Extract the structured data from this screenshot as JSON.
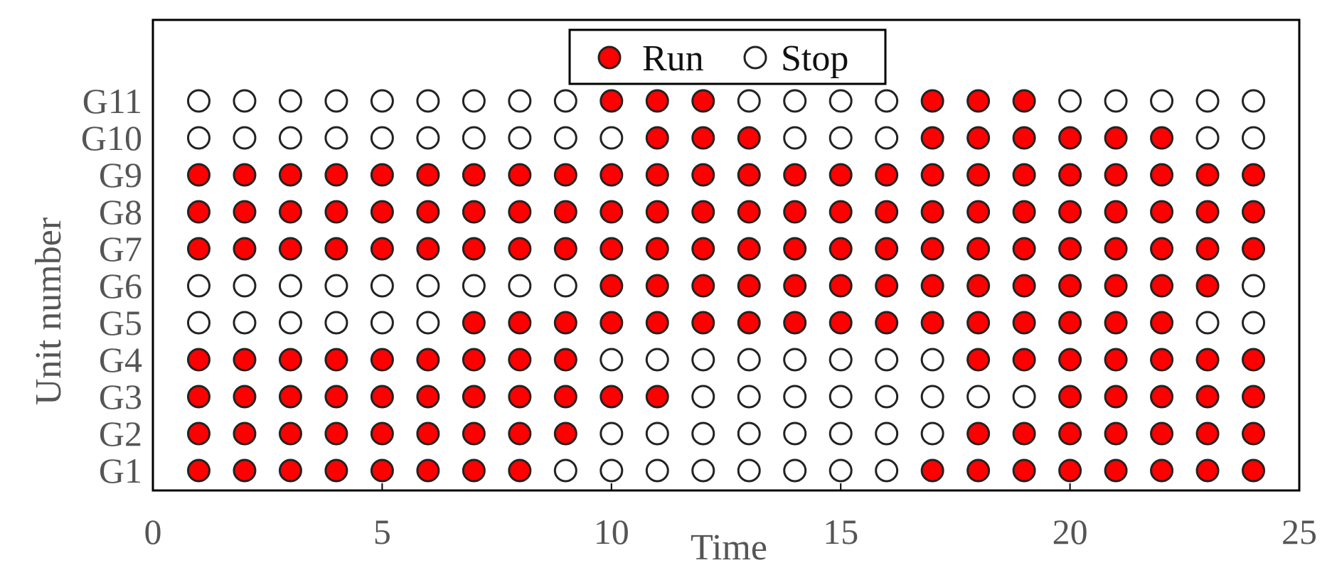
{
  "chart_data": {
    "type": "scatter",
    "title": "",
    "xlabel": "Time",
    "ylabel": "Unit number",
    "xlim": [
      0,
      25
    ],
    "xticks": [
      0,
      5,
      10,
      15,
      20,
      25
    ],
    "x": [
      1,
      2,
      3,
      4,
      5,
      6,
      7,
      8,
      9,
      10,
      11,
      12,
      13,
      14,
      15,
      16,
      17,
      18,
      19,
      20,
      21,
      22,
      23,
      24
    ],
    "units": [
      "G1",
      "G2",
      "G3",
      "G4",
      "G5",
      "G6",
      "G7",
      "G8",
      "G9",
      "G10",
      "G11"
    ],
    "status": {
      "G1": [
        1,
        1,
        1,
        1,
        1,
        1,
        1,
        1,
        0,
        0,
        0,
        0,
        0,
        0,
        0,
        0,
        1,
        1,
        1,
        1,
        1,
        1,
        1,
        1
      ],
      "G2": [
        1,
        1,
        1,
        1,
        1,
        1,
        1,
        1,
        1,
        0,
        0,
        0,
        0,
        0,
        0,
        0,
        0,
        1,
        1,
        1,
        1,
        1,
        1,
        1
      ],
      "G3": [
        1,
        1,
        1,
        1,
        1,
        1,
        1,
        1,
        1,
        1,
        1,
        0,
        0,
        0,
        0,
        0,
        0,
        0,
        0,
        1,
        1,
        1,
        1,
        1
      ],
      "G4": [
        1,
        1,
        1,
        1,
        1,
        1,
        1,
        1,
        1,
        0,
        0,
        0,
        0,
        0,
        0,
        0,
        0,
        1,
        1,
        1,
        1,
        1,
        1,
        1
      ],
      "G5": [
        0,
        0,
        0,
        0,
        0,
        0,
        1,
        1,
        1,
        1,
        1,
        1,
        1,
        1,
        1,
        1,
        1,
        1,
        1,
        1,
        1,
        1,
        0,
        0
      ],
      "G6": [
        0,
        0,
        0,
        0,
        0,
        0,
        0,
        0,
        0,
        1,
        1,
        1,
        1,
        1,
        1,
        1,
        1,
        1,
        1,
        1,
        1,
        1,
        1,
        0
      ],
      "G7": [
        1,
        1,
        1,
        1,
        1,
        1,
        1,
        1,
        1,
        1,
        1,
        1,
        1,
        1,
        1,
        1,
        1,
        1,
        1,
        1,
        1,
        1,
        1,
        1
      ],
      "G8": [
        1,
        1,
        1,
        1,
        1,
        1,
        1,
        1,
        1,
        1,
        1,
        1,
        1,
        1,
        1,
        1,
        1,
        1,
        1,
        1,
        1,
        1,
        1,
        1
      ],
      "G9": [
        1,
        1,
        1,
        1,
        1,
        1,
        1,
        1,
        1,
        1,
        1,
        1,
        1,
        1,
        1,
        1,
        1,
        1,
        1,
        1,
        1,
        1,
        1,
        1
      ],
      "G10": [
        0,
        0,
        0,
        0,
        0,
        0,
        0,
        0,
        0,
        0,
        1,
        1,
        1,
        0,
        0,
        0,
        1,
        1,
        1,
        1,
        1,
        1,
        0,
        0
      ],
      "G11": [
        0,
        0,
        0,
        0,
        0,
        0,
        0,
        0,
        0,
        1,
        1,
        1,
        0,
        0,
        0,
        0,
        1,
        1,
        1,
        0,
        0,
        0,
        0,
        0
      ]
    },
    "legend": {
      "position": "top-center",
      "entries": [
        {
          "label": "Run",
          "value": 1,
          "fill": "#ff0000"
        },
        {
          "label": "Stop",
          "value": 0,
          "fill": "#ffffff"
        }
      ]
    },
    "grid": false,
    "colors": {
      "run_fill": "#ff0000",
      "stop_fill": "#ffffff",
      "marker_edge": "#222222",
      "axis": "#000000",
      "text": "#555555"
    }
  }
}
